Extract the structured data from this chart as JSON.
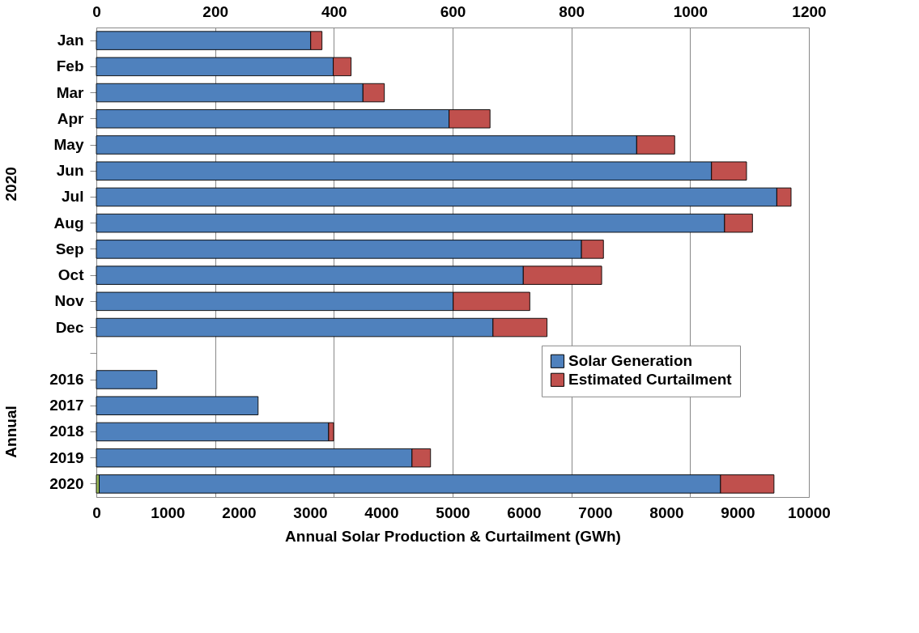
{
  "chart_data": {
    "type": "bar",
    "orientation": "horizontal",
    "stacked": true,
    "categories": [
      "Jan",
      "Feb",
      "Mar",
      "Apr",
      "May",
      "Jun",
      "Jul",
      "Aug",
      "Sep",
      "Oct",
      "Nov",
      "Dec",
      null,
      "2016",
      "2017",
      "2018",
      "2019",
      "2020"
    ],
    "series": [
      {
        "name": "Solar Generation",
        "color": "#4f81bd",
        "axis": "x2",
        "values": [
          361,
          399,
          449,
          594,
          910,
          1036,
          1146,
          1058,
          817,
          719,
          601,
          668,
          null,
          null,
          null,
          null,
          null,
          null
        ]
      },
      {
        "name": "Estimated Curtailment",
        "color": "#c0504d",
        "axis": "x2",
        "values": [
          19,
          30,
          36,
          69,
          64,
          59,
          24,
          47,
          37,
          132,
          129,
          91,
          null,
          null,
          null,
          null,
          null,
          null
        ]
      },
      {
        "color": "#9bbb59",
        "values": [
          null,
          null,
          null,
          null,
          null,
          null,
          null,
          null,
          null,
          null,
          null,
          null,
          null,
          null,
          null,
          null,
          null,
          40
        ]
      },
      {
        "color": "#4f81bd",
        "values": [
          null,
          null,
          null,
          null,
          null,
          null,
          null,
          null,
          null,
          null,
          null,
          null,
          null,
          850,
          2270,
          3260,
          4430,
          8720
        ]
      },
      {
        "color": "#c0504d",
        "values": [
          null,
          null,
          null,
          null,
          null,
          null,
          null,
          null,
          null,
          null,
          null,
          null,
          null,
          null,
          null,
          70,
          260,
          750
        ]
      }
    ],
    "xlim": [
      0,
      10000
    ],
    "xticks": [
      0,
      1000,
      2000,
      3000,
      4000,
      5000,
      6000,
      7000,
      8000,
      9000,
      10000
    ],
    "x2lim": [
      0,
      1200
    ],
    "x2ticks": [
      0,
      200,
      400,
      600,
      800,
      1000,
      1200
    ],
    "xlabel": "Annual Solar Production & Curtailment (GWh)",
    "annotations": [
      "2020",
      "Annual"
    ],
    "grid": "x2",
    "legend": "right"
  }
}
